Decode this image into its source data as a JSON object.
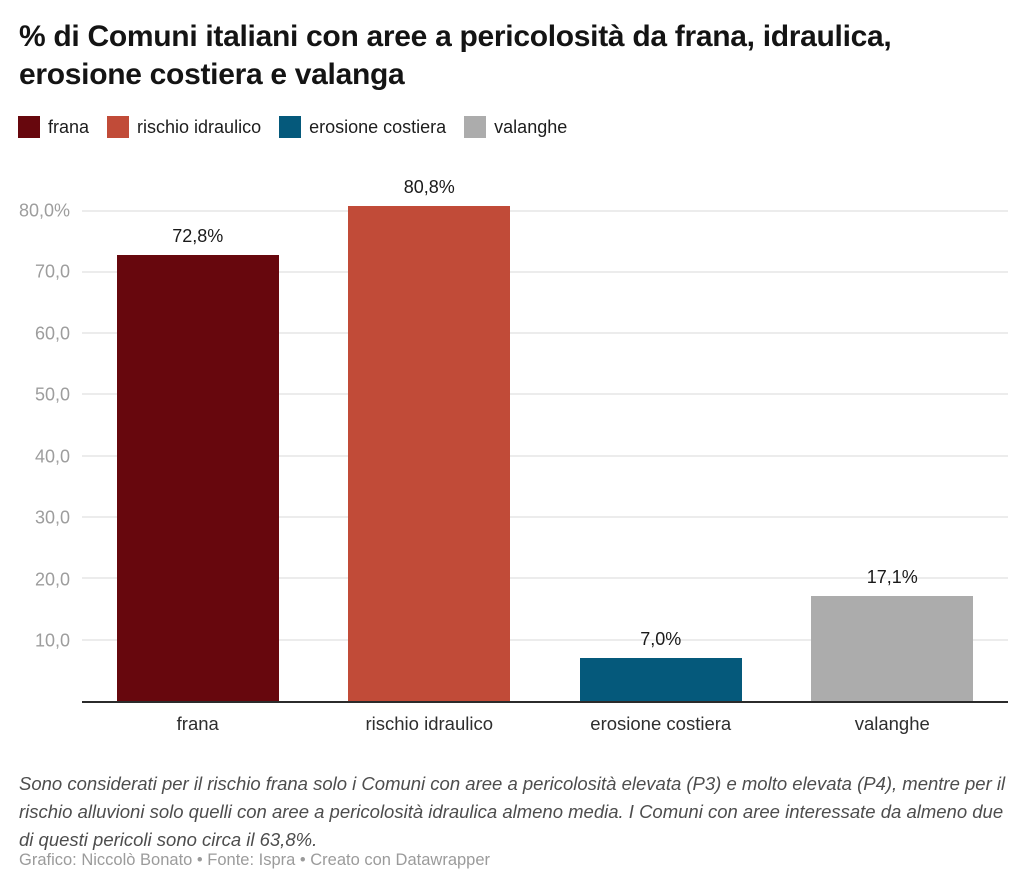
{
  "header": {
    "title": "% di Comuni italiani con aree a pericolosità da frana, idraulica, erosione costiera e valanga"
  },
  "legend": {
    "items": [
      {
        "label": "frana",
        "color": "#67070d"
      },
      {
        "label": "rischio idraulico",
        "color": "#c14b38"
      },
      {
        "label": "erosione costiera",
        "color": "#05597b"
      },
      {
        "label": "valanghe",
        "color": "#acacac"
      }
    ]
  },
  "chart_data": {
    "type": "bar",
    "title": "% di Comuni italiani con aree a pericolosità da frana, idraulica, erosione costiera e valanga",
    "categories": [
      "frana",
      "rischio idraulico",
      "erosione costiera",
      "valanghe"
    ],
    "values": [
      72.8,
      80.8,
      7.0,
      17.1
    ],
    "value_labels": [
      "72,8%",
      "80,8%",
      "7,0%",
      "17,1%"
    ],
    "colors": [
      "#67070d",
      "#c14b38",
      "#05597b",
      "#acacac"
    ],
    "xlabel": "",
    "ylabel": "",
    "ylim": [
      0,
      84
    ],
    "grid": true,
    "legend_position": "top",
    "y_ticks": [
      {
        "v": 10,
        "label": "10,0"
      },
      {
        "v": 20,
        "label": "20,0"
      },
      {
        "v": 30,
        "label": "30,0"
      },
      {
        "v": 40,
        "label": "40,0"
      },
      {
        "v": 50,
        "label": "50,0"
      },
      {
        "v": 60,
        "label": "60,0"
      },
      {
        "v": 70,
        "label": "70,0"
      },
      {
        "v": 80,
        "label": "80,0%"
      }
    ]
  },
  "notes": "Sono considerati per il rischio frana solo i Comuni con aree a pericolosità elevata (P3) e molto elevata (P4), mentre per il rischio alluvioni solo quelli con aree a pericolosità idraulica almeno media. I Comuni con aree interessate da almeno due di questi pericoli sono circa il 63,8%.",
  "byline": "Grafico: Niccolò Bonato • Fonte: Ispra • Creato con Datawrapper"
}
